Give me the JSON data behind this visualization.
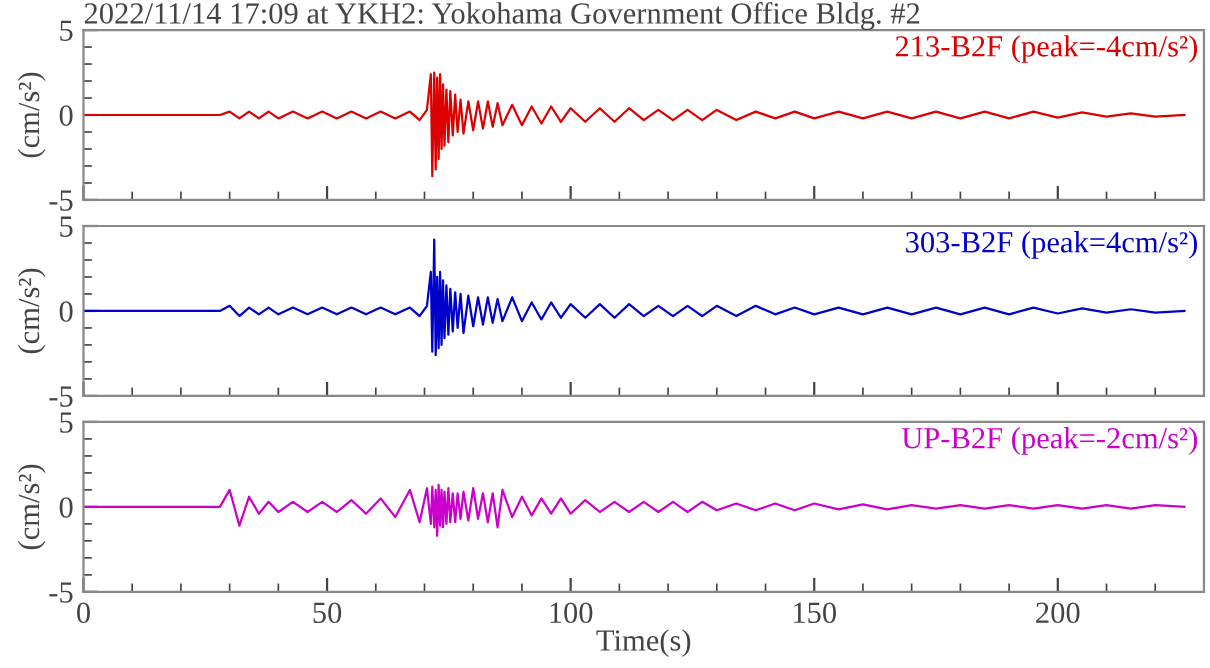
{
  "chart_data": [
    {
      "type": "line",
      "title": "2022/11/14 17:09 at YKH2: Yokohama Government Office Bldg. #2",
      "ylabel": "(cm/s²)",
      "annotations": [
        "213-B2F (peak=-4cm/s²)"
      ],
      "xlim": [
        0,
        230
      ],
      "xticks": [
        0,
        50,
        100,
        150,
        200
      ],
      "ylim": [
        -5,
        5
      ],
      "yticks": [
        -5,
        0,
        5
      ],
      "tick_labels": "y",
      "grid": false,
      "series": [
        {
          "color": "#dd0000",
          "x": [
            0,
            28,
            30,
            32,
            34,
            36,
            38,
            40,
            43,
            46,
            49,
            52,
            55,
            58,
            61,
            64,
            67,
            69,
            70.5,
            71.3,
            71.6,
            72.0,
            72.3,
            72.6,
            72.9,
            73.2,
            73.5,
            73.8,
            74.1,
            74.5,
            74.9,
            75.3,
            75.8,
            76.3,
            76.8,
            77.4,
            78,
            79,
            80,
            81,
            82,
            83,
            84,
            85,
            86,
            88,
            90,
            92,
            94,
            96,
            98,
            100,
            103,
            106,
            109,
            112,
            115,
            118,
            121,
            124,
            127,
            130,
            134,
            138,
            142,
            146,
            150,
            155,
            160,
            165,
            170,
            175,
            180,
            185,
            190,
            195,
            200,
            205,
            210,
            215,
            220,
            226
          ],
          "values": [
            0,
            0,
            0.2,
            -0.2,
            0.2,
            -0.2,
            0.2,
            -0.2,
            0.2,
            -0.2,
            0.2,
            -0.2,
            0.2,
            -0.2,
            0.2,
            -0.2,
            0.2,
            -0.3,
            0.3,
            2.4,
            -3.6,
            2.5,
            -3.2,
            2.2,
            -2.6,
            2.4,
            -2.0,
            1.8,
            -1.8,
            1.5,
            -1.6,
            1.4,
            -1.2,
            1.2,
            -1.0,
            0.9,
            -1.1,
            0.8,
            -0.9,
            0.8,
            -0.8,
            0.8,
            -0.7,
            0.7,
            -0.6,
            0.6,
            -0.6,
            0.5,
            -0.5,
            0.5,
            -0.4,
            0.4,
            -0.4,
            0.4,
            -0.4,
            0.4,
            -0.3,
            0.3,
            -0.3,
            0.3,
            -0.3,
            0.3,
            -0.3,
            0.2,
            -0.2,
            0.2,
            -0.2,
            0.2,
            -0.2,
            0.2,
            -0.2,
            0.2,
            -0.2,
            0.2,
            -0.2,
            0.2,
            -0.15,
            0.15,
            -0.1,
            0.1,
            -0.1,
            0
          ]
        }
      ]
    },
    {
      "type": "line",
      "ylabel": "(cm/s²)",
      "annotations": [
        "303-B2F (peak=4cm/s²)"
      ],
      "xlim": [
        0,
        230
      ],
      "xticks": [
        0,
        50,
        100,
        150,
        200
      ],
      "ylim": [
        -5,
        5
      ],
      "yticks": [
        -5,
        0,
        5
      ],
      "tick_labels": "y",
      "grid": false,
      "series": [
        {
          "color": "#0000cc",
          "x": [
            0,
            28,
            30,
            32,
            34,
            36,
            38,
            40,
            43,
            46,
            49,
            52,
            55,
            58,
            61,
            64,
            67,
            69,
            70.5,
            71.3,
            71.6,
            72.0,
            72.3,
            72.6,
            72.9,
            73.2,
            73.5,
            73.8,
            74.1,
            74.5,
            74.9,
            75.3,
            75.8,
            76.3,
            76.8,
            77.4,
            78,
            79,
            80,
            81,
            82,
            83,
            84,
            85,
            86,
            88,
            90,
            92,
            94,
            96,
            98,
            100,
            103,
            106,
            109,
            112,
            115,
            118,
            121,
            124,
            127,
            130,
            134,
            138,
            142,
            146,
            150,
            155,
            160,
            165,
            170,
            175,
            180,
            185,
            190,
            195,
            200,
            205,
            210,
            215,
            220,
            226
          ],
          "values": [
            0,
            0,
            0.3,
            -0.3,
            0.2,
            -0.2,
            0.2,
            -0.2,
            0.2,
            -0.2,
            0.2,
            -0.2,
            0.2,
            -0.2,
            0.2,
            -0.2,
            0.2,
            -0.3,
            0.3,
            2.3,
            -2.4,
            4.2,
            -2.6,
            2.0,
            -2.2,
            2.3,
            -2.0,
            1.8,
            -1.6,
            1.5,
            -1.4,
            1.3,
            -1.2,
            1.1,
            -1.0,
            1.0,
            -1.3,
            0.9,
            -0.9,
            0.8,
            -0.8,
            0.8,
            -0.7,
            0.7,
            -0.6,
            0.8,
            -0.6,
            0.5,
            -0.5,
            0.5,
            -0.4,
            0.4,
            -0.4,
            0.4,
            -0.4,
            0.4,
            -0.3,
            0.3,
            -0.3,
            0.3,
            -0.3,
            0.3,
            -0.3,
            0.3,
            -0.2,
            0.2,
            -0.2,
            0.2,
            -0.2,
            0.2,
            -0.2,
            0.2,
            -0.2,
            0.2,
            -0.2,
            0.2,
            -0.15,
            0.15,
            -0.1,
            0.1,
            -0.1,
            0
          ]
        }
      ]
    },
    {
      "type": "line",
      "ylabel": "(cm/s²)",
      "xlabel": "Time(s)",
      "annotations": [
        "UP-B2F (peak=-2cm/s²)"
      ],
      "xlim": [
        0,
        230
      ],
      "xticks": [
        0,
        50,
        100,
        150,
        200
      ],
      "ylim": [
        -5,
        5
      ],
      "yticks": [
        -5,
        0,
        5
      ],
      "grid": false,
      "series": [
        {
          "color": "#cc00cc",
          "x": [
            0,
            28,
            30,
            32,
            34,
            36,
            38,
            40,
            43,
            46,
            49,
            52,
            55,
            58,
            61,
            64,
            67,
            69,
            70.5,
            71.3,
            71.6,
            72.0,
            72.3,
            72.6,
            72.9,
            73.2,
            73.5,
            73.8,
            74.1,
            74.5,
            74.9,
            75.3,
            75.8,
            76.3,
            76.8,
            77.4,
            78,
            79,
            80,
            81,
            82,
            83,
            84,
            85,
            86,
            88,
            90,
            92,
            94,
            96,
            98,
            100,
            103,
            106,
            109,
            112,
            115,
            118,
            121,
            124,
            127,
            130,
            134,
            138,
            142,
            146,
            150,
            155,
            160,
            165,
            170,
            175,
            180,
            185,
            190,
            195,
            200,
            205,
            210,
            215,
            220,
            226
          ],
          "values": [
            0,
            0,
            1.0,
            -1.1,
            0.6,
            -0.4,
            0.3,
            -0.3,
            0.3,
            -0.3,
            0.3,
            -0.3,
            0.4,
            -0.4,
            0.5,
            -0.6,
            1.0,
            -0.9,
            1.1,
            -1.0,
            1.2,
            -1.2,
            1.0,
            -1.7,
            1.3,
            -1.1,
            1.0,
            -1.2,
            0.9,
            -1.0,
            1.1,
            -0.9,
            0.8,
            -0.9,
            0.8,
            -0.7,
            0.9,
            -0.8,
            1.1,
            -0.7,
            0.8,
            -0.9,
            0.8,
            -1.2,
            1.0,
            -0.6,
            0.6,
            -0.5,
            0.5,
            -0.4,
            0.5,
            -0.4,
            0.4,
            -0.3,
            0.3,
            -0.3,
            0.3,
            -0.3,
            0.3,
            -0.3,
            0.3,
            -0.2,
            0.2,
            -0.2,
            0.2,
            -0.2,
            0.2,
            -0.15,
            0.15,
            -0.15,
            0.1,
            -0.1,
            0.1,
            -0.1,
            0.1,
            -0.1,
            0.1,
            -0.1,
            0.1,
            -0.1,
            0.1,
            0
          ]
        }
      ]
    }
  ]
}
